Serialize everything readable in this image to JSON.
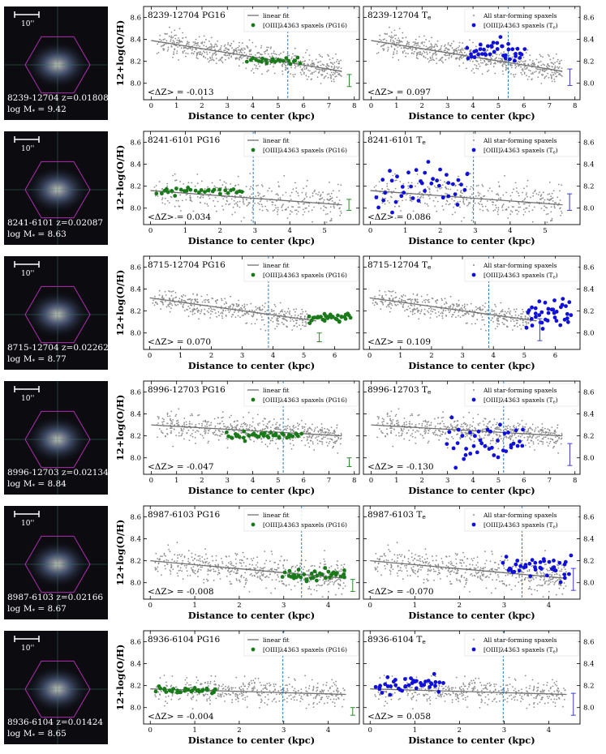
{
  "figure": {
    "ylabel": "12+log(O/H)",
    "xlabel": "Distance to center (kpc)",
    "legend_left": [
      "linear fit",
      "[OIII]λ4363 spaxels (PG16)"
    ],
    "legend_right": [
      "All star-forming spaxels",
      "[OIII]λ4363 spaxels (T"
    ],
    "te_sub": "e",
    "scale_label": "10''",
    "colors": {
      "gray": "#8c8c8c",
      "green": "#1a7a1a",
      "blue": "#1010d8",
      "vline": "#2a7ab8",
      "errbar_left": "#2a8a2a",
      "errbar_right": "#3a3ad0"
    },
    "yticks": [
      "8.0",
      "8.2",
      "8.4",
      "8.6"
    ]
  },
  "chart_data": [
    {
      "type": "scatter",
      "id": "8239-12704",
      "z_label": "z=0.01808",
      "mass_label": "log M",
      "mass_value": "= 9.42",
      "left_title": "8239-12704 PG16",
      "right_title": "8239-12704 T",
      "dz_left": "<ΔZ> = -0.013",
      "dz_right": "<ΔZ> = 0.097",
      "xlim": [
        -0.3,
        8.2
      ],
      "ylim": [
        7.85,
        8.7
      ],
      "xticks": [
        0,
        1,
        2,
        3,
        4,
        5,
        6,
        7,
        8
      ],
      "fit": [
        [
          0,
          8.39
        ],
        [
          7.5,
          8.11
        ]
      ],
      "vline": 5.38,
      "gray_range": [
        0.2,
        7.5
      ],
      "gray_n": 650,
      "gray_scatter": 0.055,
      "green": [
        [
          3.8,
          5.9
        ],
        8.205,
        0.02,
        22
      ],
      "blue": [
        [
          3.8,
          6.0
        ],
        8.285,
        0.05,
        40
      ],
      "errbar_left": [
        7.8,
        7.97,
        8.08
      ],
      "errbar_right": [
        7.8,
        7.98,
        8.13
      ]
    },
    {
      "type": "scatter",
      "id": "8241-6101",
      "z_label": "z=0.02087",
      "mass_label": "log M",
      "mass_value": "= 8.63",
      "left_title": "8241-6101 PG16",
      "right_title": "8241-6101 T",
      "dz_left": "<ΔZ> = 0.034",
      "dz_right": "<ΔZ> = 0.086",
      "xlim": [
        -0.2,
        6.0
      ],
      "ylim": [
        7.85,
        8.7
      ],
      "xticks": [
        0,
        1,
        2,
        3,
        4,
        5
      ],
      "fit": [
        [
          0,
          8.16
        ],
        [
          5.5,
          8.03
        ]
      ],
      "vline": 2.95,
      "gray_range": [
        0.1,
        5.5
      ],
      "gray_n": 380,
      "gray_scatter": 0.08,
      "green": [
        [
          0.2,
          2.6
        ],
        8.15,
        0.02,
        30
      ],
      "blue": [
        [
          0.2,
          2.8
        ],
        8.22,
        0.1,
        40
      ],
      "errbar_left": [
        5.7,
        7.98,
        8.08
      ],
      "errbar_right": [
        5.7,
        7.98,
        8.13
      ]
    },
    {
      "type": "scatter",
      "id": "8715-12704",
      "z_label": "z=0.02262",
      "mass_label": "log M",
      "mass_value": "= 8.77",
      "left_title": "8715-12704 PG16",
      "right_title": "8715-12704 T",
      "dz_left": "<ΔZ> = 0.070",
      "dz_right": "<ΔZ> = 0.109",
      "xlim": [
        -0.2,
        6.8
      ],
      "ylim": [
        7.85,
        8.7
      ],
      "xticks": [
        0,
        1,
        2,
        3,
        4,
        5,
        6
      ],
      "fit": [
        [
          0,
          8.32
        ],
        [
          5.4,
          8.11
        ]
      ],
      "vline": 3.85,
      "gray_range": [
        0.1,
        5.2
      ],
      "gray_n": 420,
      "gray_scatter": 0.05,
      "green": [
        [
          5.2,
          6.5
        ],
        8.14,
        0.02,
        35
      ],
      "blue": [
        [
          5.1,
          6.5
        ],
        8.18,
        0.07,
        38
      ],
      "errbar_left": [
        5.5,
        7.92,
        8.0
      ],
      "errbar_right": [
        5.5,
        7.93,
        8.13
      ]
    },
    {
      "type": "scatter",
      "id": "8996-12703",
      "z_label": "z=0.02134",
      "mass_label": "log M",
      "mass_value": "= 8.84",
      "left_title": "8996-12703 PG16",
      "right_title": "8996-12703 T",
      "dz_left": "<ΔZ> = -0.047",
      "dz_right": "<ΔZ> = -0.130",
      "xlim": [
        -0.3,
        8.2
      ],
      "ylim": [
        7.85,
        8.7
      ],
      "xticks": [
        0,
        1,
        2,
        3,
        4,
        5,
        6,
        7,
        8
      ],
      "fit": [
        [
          0,
          8.3
        ],
        [
          7.5,
          8.2
        ]
      ],
      "vline": 5.2,
      "gray_range": [
        0.2,
        7.5
      ],
      "gray_n": 560,
      "gray_scatter": 0.06,
      "green": [
        [
          3.0,
          5.9
        ],
        8.2,
        0.02,
        40
      ],
      "blue": [
        [
          3.0,
          6.0
        ],
        8.1,
        0.1,
        40
      ],
      "errbar_left": [
        7.8,
        7.92,
        8.0
      ],
      "errbar_right": [
        7.8,
        7.93,
        8.13
      ]
    },
    {
      "type": "scatter",
      "id": "8987-6103",
      "z_label": "z=0.02166",
      "mass_label": "log M",
      "mass_value": "= 8.67",
      "left_title": "8987-6103 PG16",
      "right_title": "8987-6103 T",
      "dz_left": "<ΔZ> = -0.008",
      "dz_right": "<ΔZ> = -0.070",
      "xlim": [
        -0.15,
        4.7
      ],
      "ylim": [
        7.85,
        8.7
      ],
      "xticks": [
        0,
        1,
        2,
        3,
        4
      ],
      "fit": [
        [
          0,
          8.2
        ],
        [
          4.4,
          8.04
        ]
      ],
      "vline": 3.4,
      "gray_range": [
        0.1,
        4.4
      ],
      "gray_n": 520,
      "gray_scatter": 0.07,
      "green": [
        [
          3.0,
          4.4
        ],
        8.06,
        0.03,
        35
      ],
      "blue": [
        [
          3.0,
          4.5
        ],
        8.14,
        0.05,
        40
      ],
      "errbar_left": [
        4.55,
        7.92,
        8.03
      ],
      "errbar_right": [
        4.55,
        7.93,
        8.13
      ]
    },
    {
      "type": "scatter",
      "id": "8936-6104",
      "z_label": "z=0.01424",
      "mass_label": "log M",
      "mass_value": "= 8.65",
      "left_title": "8936-6104 PG16",
      "right_title": "8936-6104 T",
      "dz_left": "<ΔZ> = -0.004",
      "dz_right": "<ΔZ> = 0.058",
      "xlim": [
        -0.15,
        4.7
      ],
      "ylim": [
        7.85,
        8.7
      ],
      "xticks": [
        0,
        1,
        2,
        3,
        4
      ],
      "fit": [
        [
          0,
          8.17
        ],
        [
          4.4,
          8.12
        ]
      ],
      "vline": 2.98,
      "gray_range": [
        0.1,
        4.4
      ],
      "gray_n": 420,
      "gray_scatter": 0.06,
      "green": [
        [
          0.15,
          1.5
        ],
        8.155,
        0.015,
        30
      ],
      "blue": [
        [
          0.15,
          1.6
        ],
        8.2,
        0.05,
        40
      ],
      "errbar_left": [
        4.55,
        7.93,
        8.0
      ],
      "errbar_right": [
        4.55,
        7.93,
        8.13
      ]
    }
  ]
}
